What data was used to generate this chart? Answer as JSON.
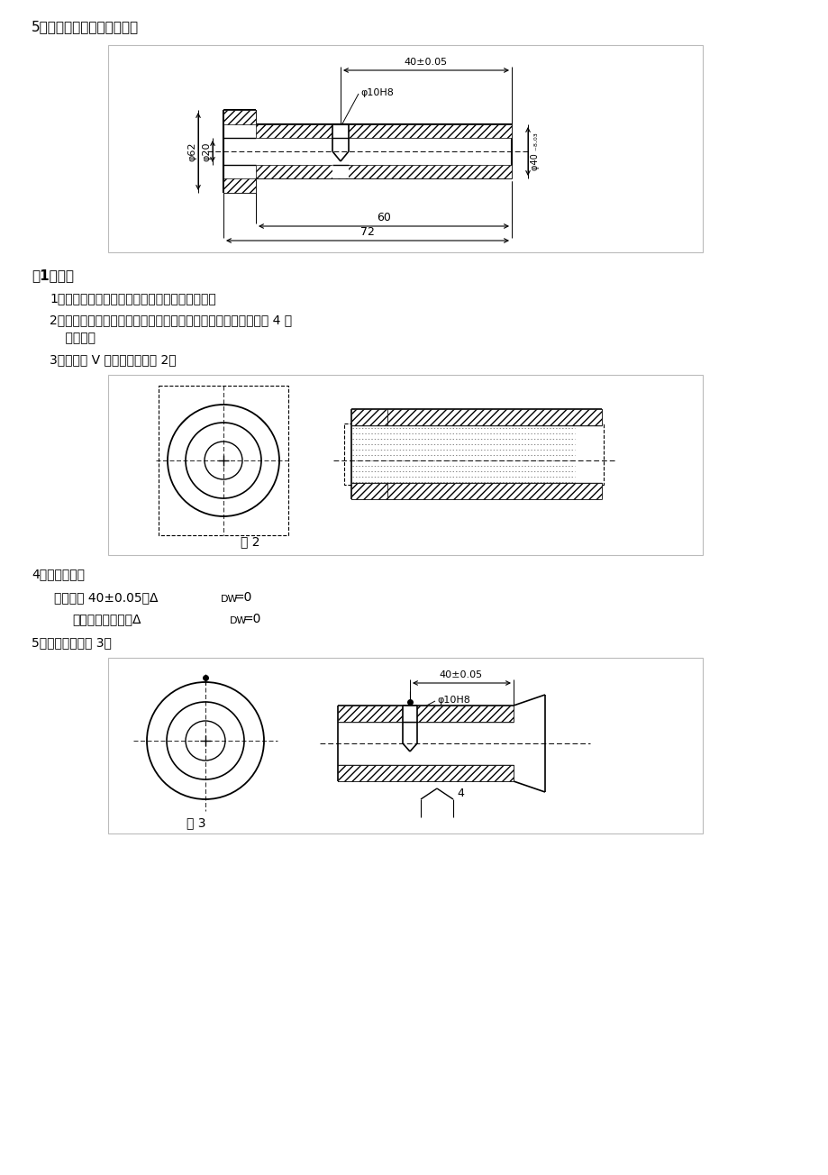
{
  "title": "5）画出该工序的工序简图。",
  "section1_title": "（1）解：",
  "item1": "1）加工方法：钒一朘；使用其具：钒头、朘刀。",
  "item2a": "2）必须限制除工件自身轴线转动和所加工孔轴线方向移动以外的 4 个",
  "item2b": "    自由度。",
  "item3": "3）使用长 V 形块定位，见图 2。",
  "fig2_label": "图 2",
  "item4": "4）定位误差：",
  "item4_1a": "对于尺寸 40±0.05，Δ",
  "item4_1b": "DW",
  "item4_1c": "=0",
  "item4_2a": "对于垂直相交度，Δ",
  "item4_2b": "DW",
  "item4_2c": "=0",
  "item5": "5）工序简图见图 3。",
  "fig3_label": "图 3",
  "dim_40_005": "40±0.05",
  "dim_phi10H8": "φ10H8",
  "dim_60": "60",
  "dim_72": "72",
  "bg_color": "#ffffff",
  "lc": "#000000"
}
